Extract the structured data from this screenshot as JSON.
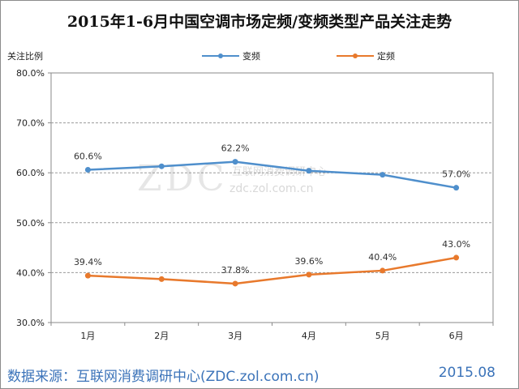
{
  "title": "2015年1-6月中国空调市场定频/变频类型产品关注走势",
  "watermark": {
    "logo": "ZDC",
    "cn": "互联网消费调研中心",
    "url": "zdc.zol.com.cn"
  },
  "footer": {
    "source": "数据来源：互联网消费调研中心(ZDC.zol.com.cn)",
    "date": "2015.08"
  },
  "colors": {
    "inverter": "#4f8fcc",
    "fixed": "#e8792c",
    "grid": "#9a9a9a",
    "footer_text": "#3b73b9"
  },
  "chart_data": {
    "type": "line",
    "title": "2015年1-6月中国空调市场定频/变频类型产品关注走势",
    "ylabel": "关注比例",
    "xlabel": "",
    "categories": [
      "1月",
      "2月",
      "3月",
      "4月",
      "5月",
      "6月"
    ],
    "ylim": [
      30,
      80
    ],
    "yticks": [
      "30.0%",
      "40.0%",
      "50.0%",
      "60.0%",
      "70.0%",
      "80.0%"
    ],
    "grid": true,
    "legend_position": "top",
    "series": [
      {
        "name": "变频",
        "values": [
          60.6,
          61.3,
          62.2,
          60.4,
          59.6,
          57.0
        ],
        "labels": [
          "60.6%",
          null,
          "62.2%",
          null,
          null,
          "57.0%"
        ]
      },
      {
        "name": "定频",
        "values": [
          39.4,
          38.7,
          37.8,
          39.6,
          40.4,
          43.0
        ],
        "labels": [
          "39.4%",
          null,
          "37.8%",
          "39.6%",
          "40.4%",
          "43.0%"
        ]
      }
    ]
  }
}
